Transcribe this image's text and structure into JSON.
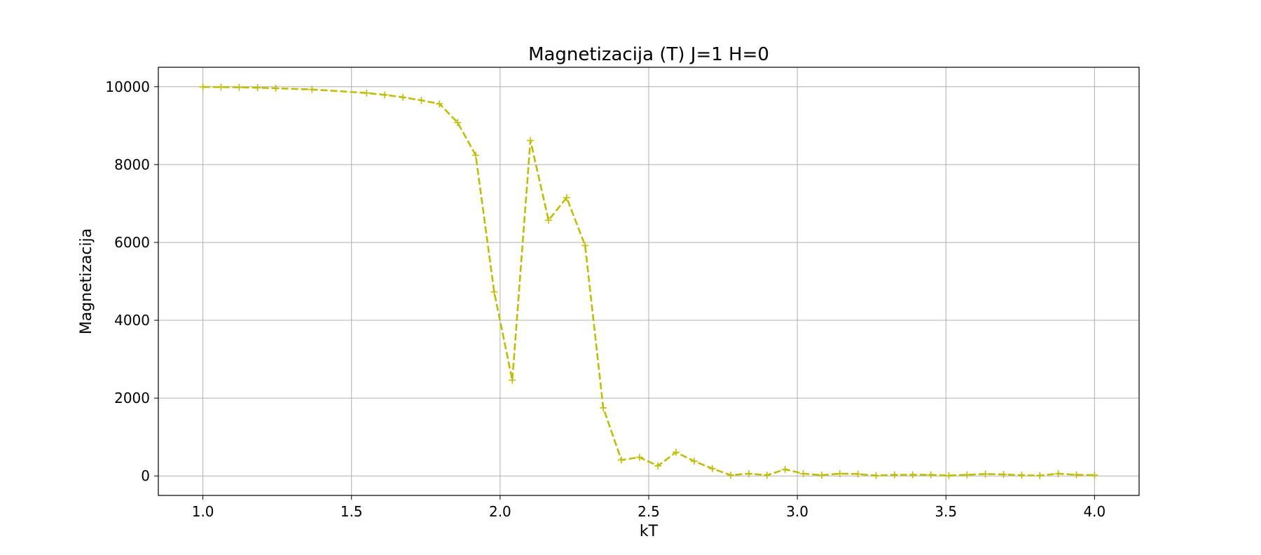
{
  "chart_data": {
    "type": "line",
    "title": "Magnetizacija (T) J=1 H=0",
    "xlabel": "kT",
    "ylabel": "Magnetizacija",
    "xlim": [
      0.85,
      4.15
    ],
    "ylim": [
      -500,
      10500
    ],
    "xticks": [
      1.0,
      1.5,
      2.0,
      2.5,
      3.0,
      3.5,
      4.0
    ],
    "xtick_labels": [
      "1.0",
      "1.5",
      "2.0",
      "2.5",
      "3.0",
      "3.5",
      "4.0"
    ],
    "yticks": [
      0,
      2000,
      4000,
      6000,
      8000,
      10000
    ],
    "ytick_labels": [
      "0",
      "2000",
      "4000",
      "6000",
      "8000",
      "10000"
    ],
    "grid": true,
    "line_style": "dashed",
    "marker": "+",
    "color": "#bfbf00",
    "series": [
      {
        "x": [
          1.0,
          1.061,
          1.122,
          1.184,
          1.245,
          1.367,
          1.551,
          1.612,
          1.673,
          1.735,
          1.796,
          1.857,
          1.918,
          1.98,
          2.041,
          2.102,
          2.163,
          2.224,
          2.286,
          2.347,
          2.408,
          2.469,
          2.531,
          2.592,
          2.653,
          2.714,
          2.776,
          2.837,
          2.898,
          2.959,
          3.02,
          3.082,
          3.143,
          3.204,
          3.265,
          3.327,
          3.388,
          3.449,
          3.51,
          3.571,
          3.633,
          3.694,
          3.755,
          3.816,
          3.878,
          3.939,
          4.0
        ],
        "y": [
          9995,
          9990,
          9985,
          9975,
          9960,
          9930,
          9840,
          9790,
          9730,
          9650,
          9560,
          9080,
          8240,
          4730,
          2460,
          8620,
          6570,
          7150,
          5920,
          1750,
          410,
          480,
          260,
          610,
          380,
          190,
          20,
          60,
          20,
          170,
          60,
          20,
          60,
          50,
          10,
          30,
          30,
          30,
          10,
          30,
          50,
          40,
          20,
          10,
          60,
          30,
          20
        ]
      }
    ]
  }
}
